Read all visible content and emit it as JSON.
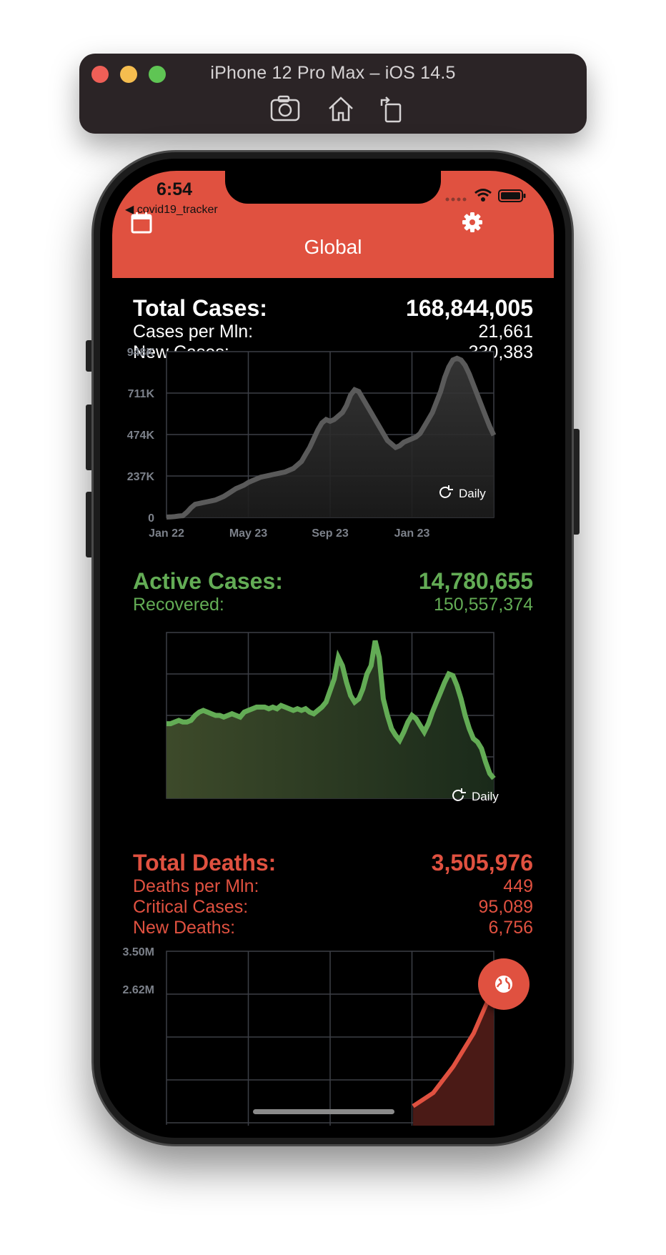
{
  "simulator": {
    "title": "iPhone 12 Pro Max – iOS 14.5",
    "tools": [
      "screenshot-icon",
      "home-icon",
      "rotate-icon"
    ]
  },
  "statusbar": {
    "time": "6:54",
    "back_app": "◀ covid19_tracker",
    "icons": [
      "signal-dots-icon",
      "wifi-icon",
      "battery-icon"
    ]
  },
  "appbar": {
    "title": "Global",
    "left_icon": "calendar-icon",
    "right_icon": "settings-gear-icon",
    "color": "#e05140"
  },
  "cases": {
    "total_label": "Total Cases:",
    "total_value": "168,844,005",
    "per_mln_label": "Cases per Mln:",
    "per_mln_value": "21,661",
    "new_label": "New Cases:",
    "new_value": "330,383"
  },
  "active": {
    "active_label": "Active Cases:",
    "active_value": "14,780,655",
    "recovered_label": "Recovered:",
    "recovered_value": "150,557,374",
    "color": "#63ac55"
  },
  "deaths": {
    "total_label": "Total Deaths:",
    "total_value": "3,505,976",
    "per_mln_label": "Deaths per Mln:",
    "per_mln_value": "449",
    "critical_label": "Critical Cases:",
    "critical_value": "95,089",
    "new_label": "New Deaths:",
    "new_value": "6,756",
    "color": "#e05140"
  },
  "chart_data": [
    {
      "type": "area",
      "ytick_labels": [
        "0",
        "237K",
        "474K",
        "711K",
        "948K"
      ],
      "ylim": [
        0,
        948000
      ],
      "xtick_labels": [
        "Jan 22",
        "May 23",
        "Sep 23",
        "Jan 23"
      ],
      "mode_label": "Daily",
      "grid": true,
      "series": [
        {
          "x": [
            0,
            1,
            2,
            3,
            4,
            5,
            6,
            7,
            8,
            9,
            10,
            11,
            12,
            13,
            14,
            15,
            16,
            17,
            18,
            19,
            20,
            21,
            22,
            23,
            24,
            25,
            26,
            27,
            28,
            29,
            30,
            31,
            32,
            33,
            34,
            35,
            36,
            37,
            38,
            39,
            40,
            41,
            42,
            43,
            44,
            45,
            46,
            47,
            48,
            49,
            50,
            51,
            52,
            53,
            54,
            55,
            56,
            57,
            58,
            59,
            60,
            61,
            62,
            63,
            64,
            65,
            66,
            67,
            68,
            69,
            70,
            71,
            72,
            73,
            74,
            75,
            76,
            77,
            78,
            79,
            80
          ],
          "y": [
            2000,
            3000,
            5000,
            8000,
            10000,
            30000,
            55000,
            75000,
            80000,
            85000,
            90000,
            95000,
            100000,
            110000,
            120000,
            135000,
            150000,
            165000,
            175000,
            185000,
            200000,
            210000,
            220000,
            230000,
            235000,
            240000,
            245000,
            250000,
            255000,
            260000,
            270000,
            280000,
            300000,
            320000,
            360000,
            400000,
            450000,
            500000,
            540000,
            560000,
            550000,
            560000,
            580000,
            600000,
            640000,
            700000,
            730000,
            720000,
            680000,
            640000,
            600000,
            560000,
            520000,
            480000,
            440000,
            420000,
            400000,
            410000,
            430000,
            440000,
            450000,
            460000,
            480000,
            520000,
            560000,
            600000,
            660000,
            720000,
            800000,
            860000,
            900000,
            910000,
            900000,
            870000,
            820000,
            760000,
            700000,
            640000,
            580000,
            520000,
            470000
          ],
          "color": "#5a5a5a"
        }
      ]
    },
    {
      "type": "area",
      "mode_label": "Daily",
      "grid": true,
      "ylim": [
        0,
        100
      ],
      "series": [
        {
          "x": [
            0,
            1,
            2,
            3,
            4,
            5,
            6,
            7,
            8,
            9,
            10,
            11,
            12,
            13,
            14,
            15,
            16,
            17,
            18,
            19,
            20,
            21,
            22,
            23,
            24,
            25,
            26,
            27,
            28,
            29,
            30,
            31,
            32,
            33,
            34,
            35,
            36,
            37,
            38,
            39,
            40,
            41,
            42,
            43,
            44,
            45,
            46,
            47,
            48,
            49,
            50,
            51,
            52,
            53,
            54,
            55,
            56,
            57,
            58,
            59,
            60,
            61,
            62,
            63,
            64,
            65,
            66,
            67,
            68,
            69,
            70,
            71,
            72,
            73,
            74,
            75,
            76,
            77,
            78,
            79,
            80
          ],
          "y": [
            45,
            45,
            46,
            47,
            46,
            46,
            47,
            50,
            52,
            53,
            52,
            51,
            50,
            50,
            49,
            50,
            51,
            50,
            49,
            52,
            53,
            54,
            55,
            55,
            55,
            54,
            55,
            54,
            56,
            55,
            54,
            53,
            54,
            53,
            54,
            52,
            51,
            53,
            55,
            58,
            65,
            72,
            85,
            80,
            70,
            62,
            58,
            60,
            66,
            75,
            80,
            95,
            85,
            60,
            50,
            42,
            38,
            35,
            40,
            46,
            50,
            48,
            44,
            40,
            45,
            52,
            58,
            64,
            70,
            75,
            74,
            68,
            60,
            50,
            42,
            36,
            34,
            30,
            22,
            15,
            12
          ],
          "color": "#63ac55"
        }
      ]
    },
    {
      "type": "line",
      "ytick_labels": [
        "2.62M",
        "3.50M"
      ],
      "grid": true,
      "series": [
        {
          "x": [
            0,
            1,
            2,
            3,
            4
          ],
          "y": [
            2.45,
            2.55,
            2.75,
            3.0,
            3.35
          ],
          "color": "#e05140"
        }
      ]
    }
  ],
  "fab": {
    "icon": "globe-icon"
  }
}
